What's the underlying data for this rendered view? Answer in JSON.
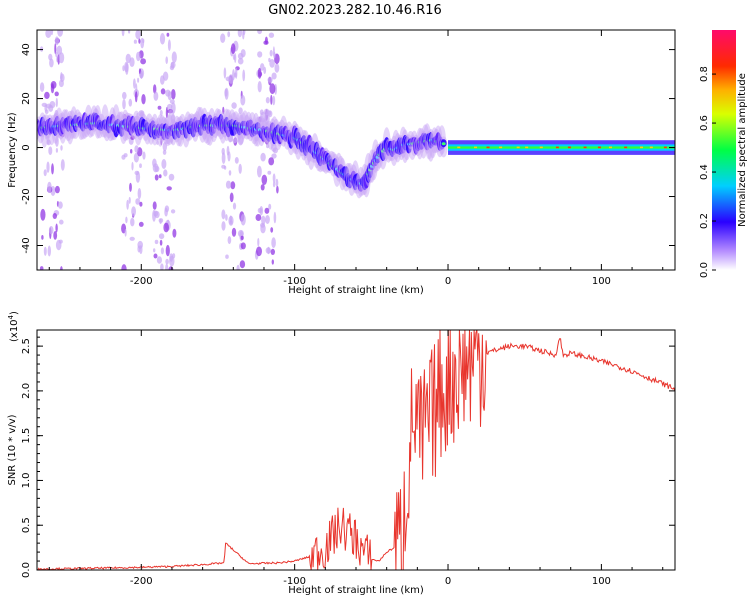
{
  "title": "GN02.2023.282.10.46.R16",
  "chart_data": [
    {
      "type": "heatmap",
      "xlabel": "Height of straight line (km)",
      "ylabel": "Frequency (Hz)",
      "xlim": [
        -268,
        148
      ],
      "ylim": [
        -50,
        48
      ],
      "xticks": [
        -200,
        -100,
        0,
        100
      ],
      "yticks": [
        -40,
        -20,
        0,
        20,
        40
      ],
      "colorbar": {
        "label": "Normalized spectral amplitude",
        "range": [
          0,
          0.98
        ],
        "ticks": [
          "0.0",
          "0.2",
          "0.4",
          "0.6",
          "0.8"
        ],
        "tick_values": [
          0,
          0.2,
          0.4,
          0.6,
          0.8
        ]
      },
      "ridge": {
        "heights": [
          -268,
          -250,
          -230,
          -200,
          -180,
          -160,
          -140,
          -120,
          -100,
          -90,
          -80,
          -70,
          -60,
          -55,
          -50,
          -45,
          -40,
          -35,
          -30,
          -20,
          -10,
          0,
          20,
          50,
          100,
          148
        ],
        "frequency": [
          8,
          9,
          10,
          8,
          7,
          9,
          9,
          7,
          4,
          0,
          -5,
          -10,
          -14,
          -15,
          -8,
          -3,
          0,
          -1,
          1,
          2,
          3,
          1,
          0,
          0,
          0,
          0
        ]
      },
      "scatter_columns": [
        -258,
        -205,
        -185,
        -140,
        -118
      ]
    },
    {
      "type": "line",
      "xlabel": "Height of straight line (km)",
      "ylabel": "SNR (10 * v/v)",
      "scale_label": "(x10",
      "scale_exp": "4",
      "scale_close": ")",
      "xlim": [
        -268,
        148
      ],
      "ylim": [
        0,
        2.68
      ],
      "xticks": [
        -200,
        -100,
        0,
        100
      ],
      "yticks": [
        "0.0",
        "0.5",
        "1.0",
        "1.5",
        "2.0",
        "2.5"
      ],
      "ytick_values": [
        0,
        0.5,
        1.0,
        1.5,
        2.0,
        2.5
      ],
      "series": [
        {
          "name": "SNR",
          "color": "#e8352d",
          "x": [
            -268,
            -230,
            -200,
            -180,
            -160,
            -146,
            -145,
            -130,
            -110,
            -100,
            -90,
            -80,
            -70,
            -60,
            -55,
            -50,
            -45,
            -40,
            -35,
            -30,
            -26,
            -22,
            -18,
            -14,
            -10,
            -5,
            0,
            5,
            10,
            15,
            20,
            30,
            40,
            50,
            60,
            70,
            73,
            75,
            80,
            90,
            100,
            110,
            120,
            130,
            140,
            148
          ],
          "y": [
            0.01,
            0.02,
            0.03,
            0.04,
            0.06,
            0.08,
            0.3,
            0.07,
            0.08,
            0.1,
            0.15,
            0.25,
            0.5,
            0.35,
            0.2,
            0.12,
            0.1,
            0.2,
            0.25,
            0.3,
            1.2,
            1.8,
            1.4,
            1.6,
            1.7,
            2.0,
            2.1,
            2.2,
            2.3,
            2.35,
            2.4,
            2.45,
            2.5,
            2.5,
            2.45,
            2.4,
            2.6,
            2.4,
            2.42,
            2.38,
            2.33,
            2.28,
            2.22,
            2.15,
            2.08,
            2.02
          ]
        }
      ]
    }
  ]
}
